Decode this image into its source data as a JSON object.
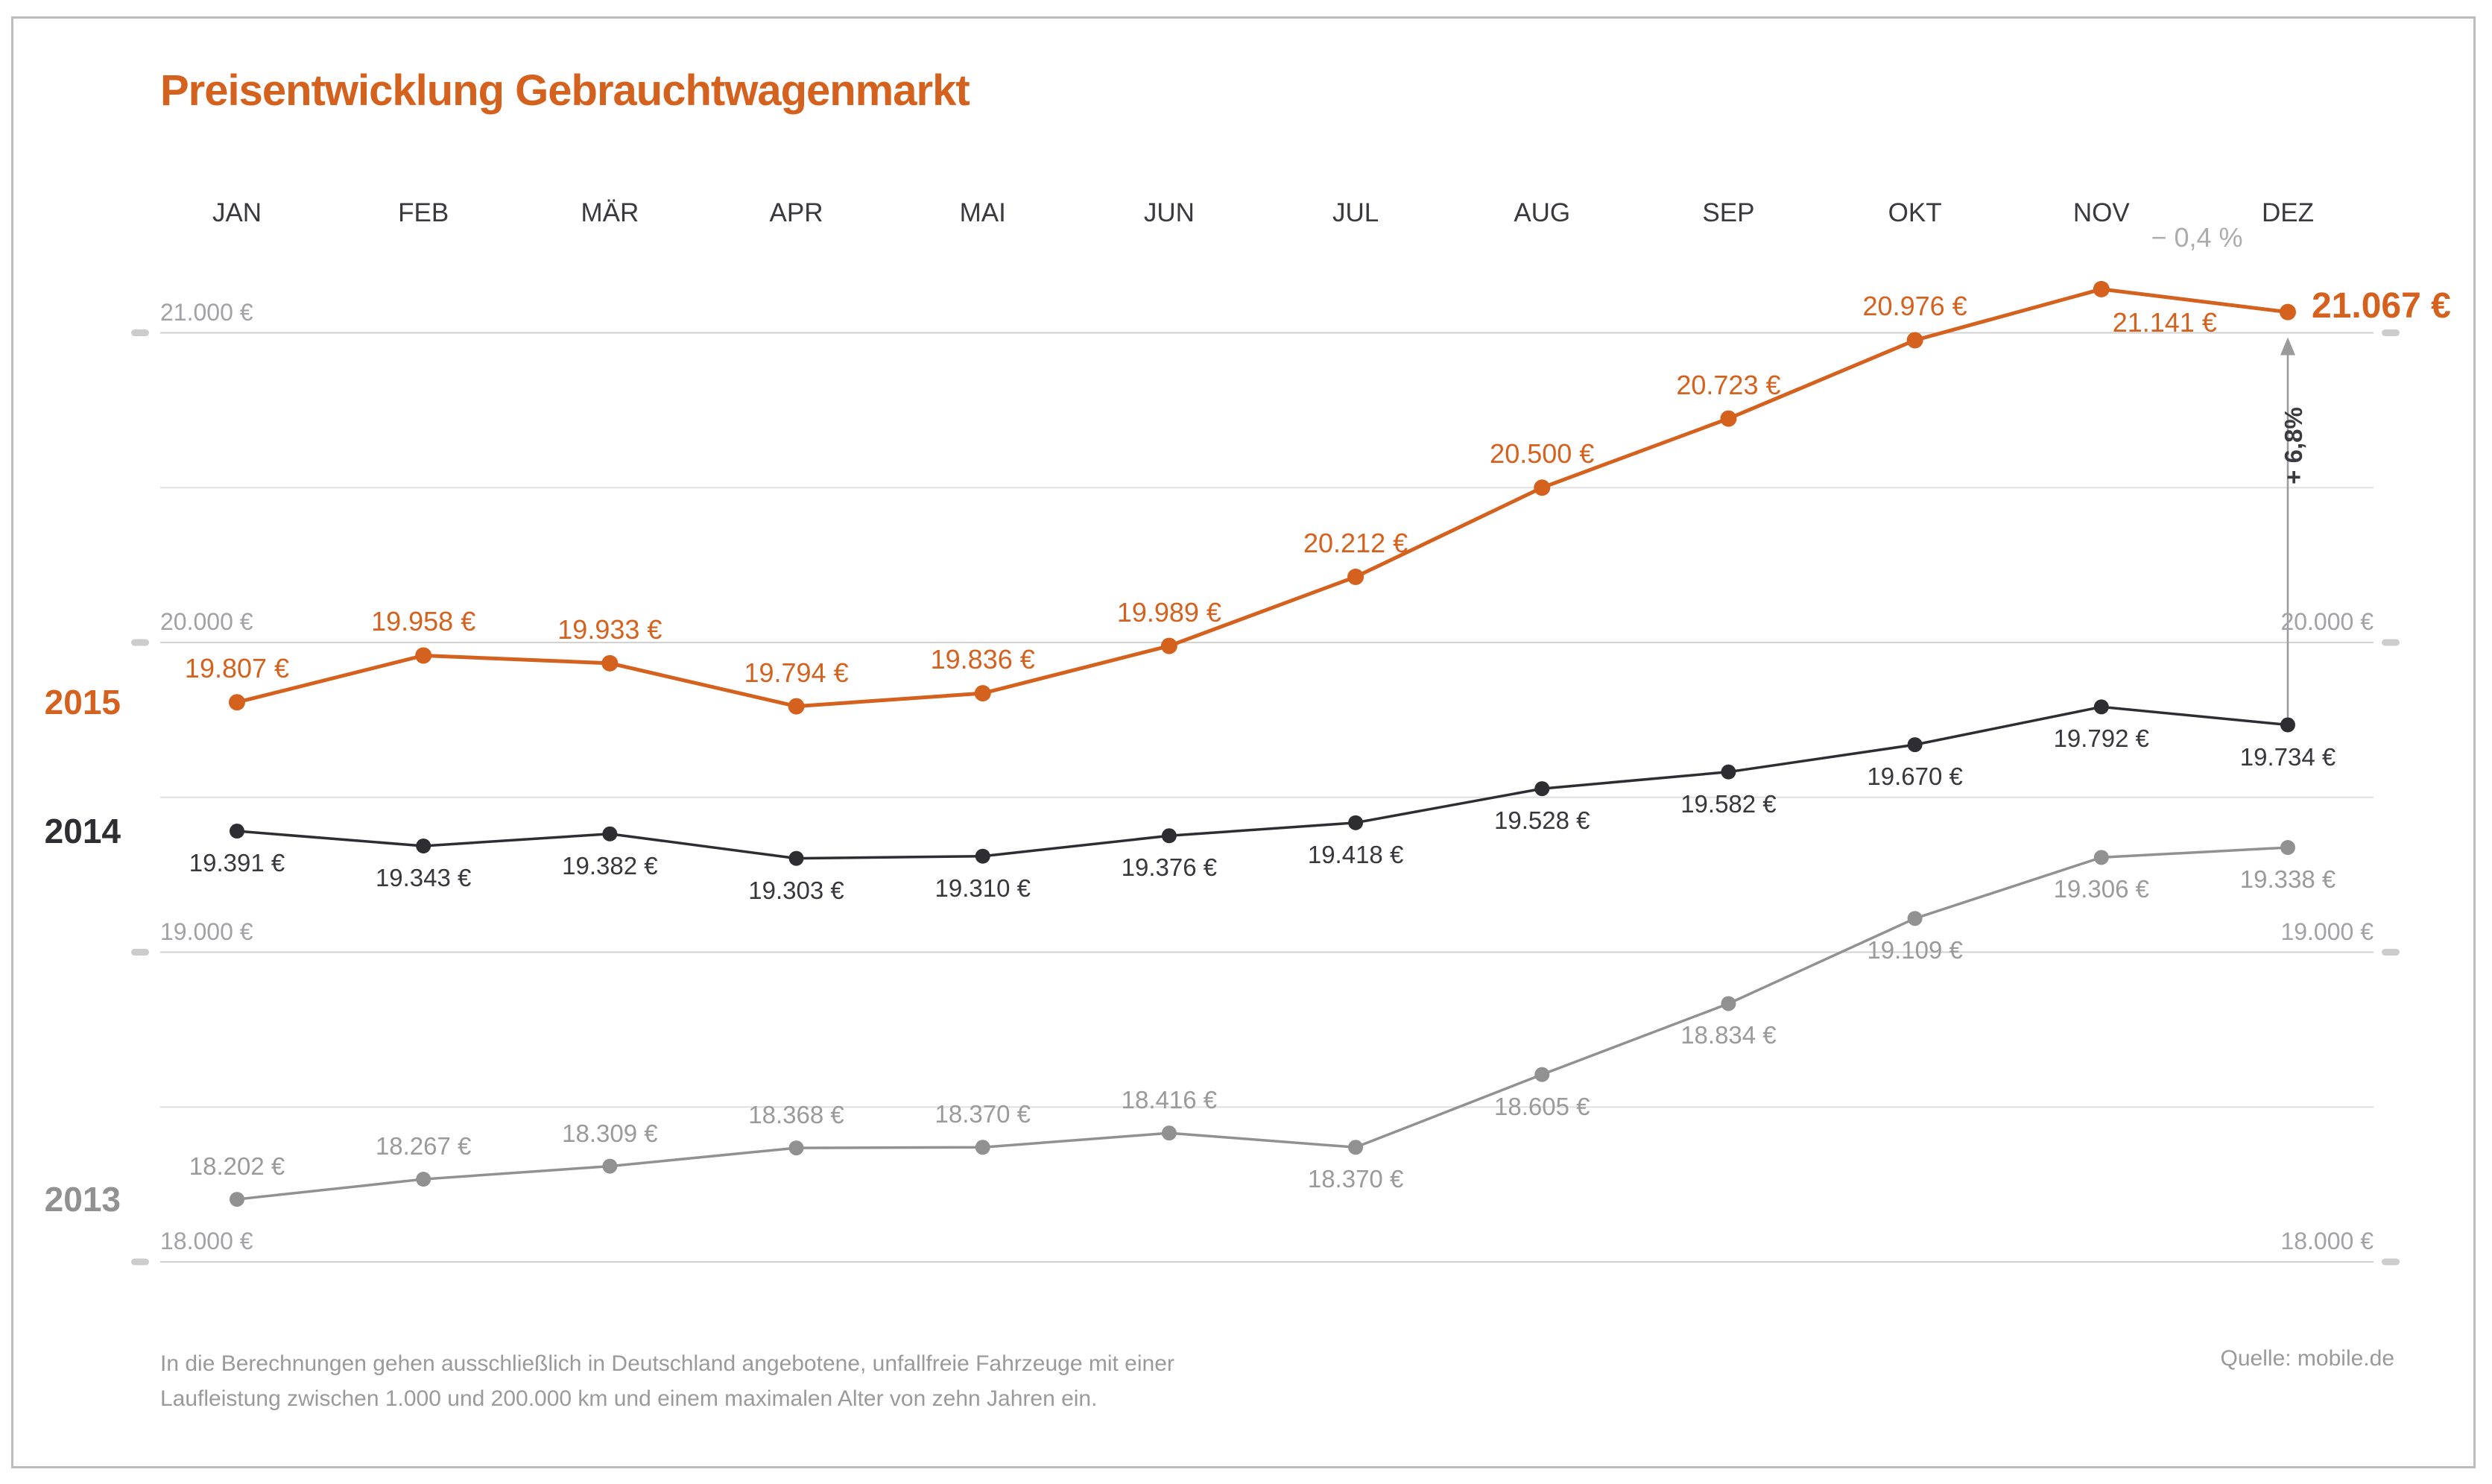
{
  "title": "Preisentwicklung Gebrauchtwagenmarkt",
  "footnote": {
    "line1": "In die Berechnungen gehen ausschließlich in Deutschland angebotene, unfallfreie Fahrzeuge mit einer",
    "line2": "Laufleistung zwischen 1.000 und 200.000 km und einem maximalen Alter von zehn Jahren ein."
  },
  "source": "Quelle: mobile.de",
  "annotations": {
    "nov_dez_change": "− 0,4 %",
    "yoy_change": "+ 6,8%"
  },
  "colors": {
    "accent_orange": "#d4621e",
    "dark": "#2e2e32",
    "gray": "#919191",
    "grid_major": "#d2d2d2",
    "grid_minor": "#e0e0e0",
    "axis_text": "#a2a2a6",
    "tick": "#cccccc",
    "arrow": "#9a9a9a",
    "border": "#bdbdbd"
  },
  "y_axis": {
    "left_labels": [
      {
        "text": "21.000 €",
        "value": 21000
      },
      {
        "text": "20.000 €",
        "value": 20000
      },
      {
        "text": "19.000 €",
        "value": 19000
      },
      {
        "text": "18.000 €",
        "value": 18000
      }
    ],
    "right_labels": [
      {
        "text": "20.000 €",
        "value": 20000
      },
      {
        "text": "19.000 €",
        "value": 19000
      },
      {
        "text": "18.000 €",
        "value": 18000
      }
    ],
    "minor_gridlines": [
      20500,
      19500,
      18500
    ]
  },
  "chart_data": {
    "type": "line",
    "title": "Preisentwicklung Gebrauchtwagenmarkt",
    "categories": [
      "JAN",
      "FEB",
      "MÄR",
      "APR",
      "MAI",
      "JUN",
      "JUL",
      "AUG",
      "SEP",
      "OKT",
      "NOV",
      "DEZ"
    ],
    "xlabel": "",
    "ylabel": "€",
    "ylim": [
      18000,
      21300
    ],
    "grid": true,
    "legend_position": "left",
    "series": [
      {
        "name": "2013",
        "color": "#919191",
        "label_color": "#9a9a9a",
        "values": [
          18202,
          18267,
          18309,
          18368,
          18370,
          18416,
          18370,
          18605,
          18834,
          19109,
          19306,
          19338
        ],
        "labels": [
          "18.202 €",
          "18.267 €",
          "18.309 €",
          "18.368 €",
          "18.370 €",
          "18.416 €",
          "18.370 €",
          "18.605 €",
          "18.834 €",
          "19.109 €",
          "19.306 €",
          "19.338 €"
        ],
        "label_pos": [
          "above",
          "above",
          "above",
          "above",
          "above",
          "above",
          "below",
          "below",
          "below",
          "below",
          "below",
          "below"
        ]
      },
      {
        "name": "2014",
        "color": "#2e2e32",
        "label_color": "#38383c",
        "values": [
          19391,
          19343,
          19382,
          19303,
          19310,
          19376,
          19418,
          19528,
          19582,
          19670,
          19792,
          19734
        ],
        "labels": [
          "19.391 €",
          "19.343 €",
          "19.382 €",
          "19.303 €",
          "19.310 €",
          "19.376 €",
          "19.418 €",
          "19.528 €",
          "19.582 €",
          "19.670 €",
          "19.792 €",
          "19.734 €"
        ],
        "label_pos": [
          "below",
          "below",
          "below",
          "below",
          "below",
          "below",
          "below",
          "below",
          "below",
          "below",
          "below",
          "below"
        ]
      },
      {
        "name": "2015",
        "color": "#d4621e",
        "label_color": "#d4621e",
        "values": [
          19807,
          19958,
          19933,
          19794,
          19836,
          19989,
          20212,
          20500,
          20723,
          20976,
          21141,
          21067
        ],
        "labels": [
          "19.807 €",
          "19.958 €",
          "19.933 €",
          "19.794 €",
          "19.836 €",
          "19.989 €",
          "20.212 €",
          "20.500 €",
          "20.723 €",
          "20.976 €",
          "21.141 €",
          "21.067 €"
        ],
        "label_pos": [
          "above",
          "above",
          "above",
          "above",
          "above",
          "above",
          "above",
          "above",
          "above",
          "above",
          "below-right",
          "right-bold"
        ]
      }
    ]
  }
}
